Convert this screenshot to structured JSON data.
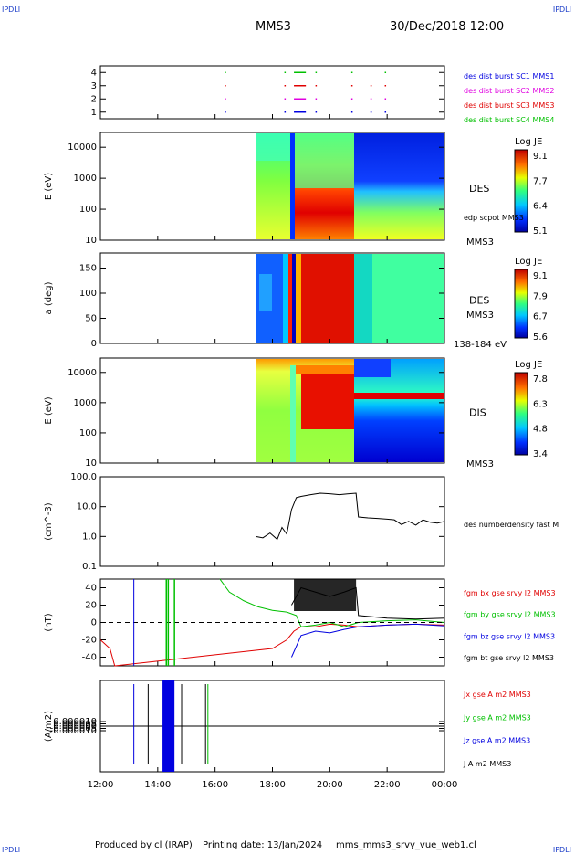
{
  "header": {
    "corner_label": "IPDLI",
    "spacecraft": "MMS3",
    "datetime": "30/Dec/2018 12:00"
  },
  "footer": {
    "produced": "Produced by cl (IRAP)",
    "printing": "Printing date: 13/Jan/2024",
    "file": "mms_mms3_srvy_vue_web1.cl"
  },
  "time_axis": {
    "ticks": [
      "12:00",
      "14:00",
      "16:00",
      "18:00",
      "20:00",
      "22:00",
      "00:00"
    ]
  },
  "colors": {
    "red": "#e00000",
    "green": "#00c000",
    "blue": "#0000e0",
    "magenta": "#e000e0",
    "black": "#000000"
  },
  "chart_data": [
    {
      "type": "scatter",
      "panel": "burst",
      "ylim": [
        0.5,
        4.5
      ],
      "yticks": [
        "1",
        "2",
        "3",
        "4"
      ],
      "legend": [
        "des dist burst SC1 MMS1",
        "des dist burst SC2 MMS2",
        "des dist burst SC3 MMS3",
        "des dist burst SC4 MMS4"
      ],
      "series": [
        {
          "name": "des dist burst SC4 MMS4",
          "y": 4,
          "color": "#00c000",
          "x": [
            "16:20",
            "18:25",
            "18:45-19:10",
            "19:30",
            "20:45",
            "21:55"
          ]
        },
        {
          "name": "des dist burst SC3 MMS3",
          "y": 3,
          "color": "#e00000",
          "x": [
            "16:20",
            "18:25",
            "18:45-19:10",
            "19:30",
            "20:45",
            "21:25",
            "21:55"
          ]
        },
        {
          "name": "des dist burst SC2 MMS2",
          "y": 2,
          "color": "#e000e0",
          "x": [
            "16:20",
            "18:25",
            "18:45-19:10",
            "19:30",
            "20:45",
            "21:25",
            "21:55"
          ]
        },
        {
          "name": "des dist burst SC1 MMS1",
          "y": 1,
          "color": "#0000e0",
          "x": [
            "16:20",
            "18:25",
            "18:45-19:10",
            "19:30",
            "20:45",
            "21:25",
            "21:55"
          ]
        }
      ]
    },
    {
      "type": "heatmap",
      "panel": "des_energy",
      "ylabel": "E (eV)",
      "yscale": "log",
      "ylim": [
        10,
        30000
      ],
      "yticks": [
        "10",
        "100",
        "1000",
        "10000"
      ],
      "label": "DES",
      "label2": "edp scpot MMS3",
      "label3": "MMS3",
      "colorbar": {
        "title": "Log JE",
        "ticks": [
          "9.1",
          "7.7",
          "6.4",
          "5.1"
        ]
      },
      "data_start": "17:25"
    },
    {
      "type": "heatmap",
      "panel": "des_pitch",
      "ylabel": "a (deg)",
      "ylim": [
        0,
        180
      ],
      "yticks": [
        "0",
        "50",
        "100",
        "150"
      ],
      "label": "DES",
      "label2": "MMS3",
      "label3": "138-184 eV",
      "colorbar": {
        "title": "Log JE",
        "ticks": [
          "9.1",
          "7.9",
          "6.7",
          "5.6"
        ]
      },
      "data_start": "17:25"
    },
    {
      "type": "heatmap",
      "panel": "dis_energy",
      "ylabel": "E (eV)",
      "yscale": "log",
      "ylim": [
        10,
        30000
      ],
      "yticks": [
        "10",
        "100",
        "1000",
        "10000"
      ],
      "label": "DIS",
      "label2": "MMS3",
      "colorbar": {
        "title": "Log JE",
        "ticks": [
          "7.8",
          "6.3",
          "4.8",
          "3.4"
        ]
      },
      "data_start": "17:25"
    },
    {
      "type": "line",
      "panel": "density",
      "ylabel": "(cm^-3)",
      "yscale": "log",
      "ylim": [
        0.1,
        100
      ],
      "yticks": [
        "0.1",
        "1.0",
        "10.0",
        "100.0"
      ],
      "series": [
        {
          "name": "des numberdensity fast M",
          "color": "#000000",
          "x": [
            "17:25",
            "17:40",
            "17:55",
            "18:10",
            "18:20",
            "18:30",
            "18:40",
            "18:50",
            "19:00",
            "19:20",
            "19:40",
            "20:00",
            "20:20",
            "20:40",
            "20:55",
            "21:00",
            "21:20",
            "21:40",
            "22:00",
            "22:15",
            "22:30",
            "22:45",
            "23:00",
            "23:15",
            "23:30",
            "23:45",
            "00:00"
          ],
          "y": [
            1.0,
            0.9,
            1.3,
            0.8,
            2.0,
            1.2,
            8.0,
            20.0,
            22.0,
            25.0,
            28.0,
            27.0,
            25.0,
            27.0,
            28.0,
            4.5,
            4.2,
            4.0,
            3.8,
            3.6,
            2.5,
            3.2,
            2.4,
            3.6,
            3.0,
            2.8,
            3.2
          ]
        }
      ]
    },
    {
      "type": "line",
      "panel": "fgm",
      "ylabel": "(nT)",
      "ylim": [
        -50,
        50
      ],
      "yticks": [
        "-40",
        "-20",
        "0",
        "20",
        "40"
      ],
      "series": [
        {
          "name": "fgm bx gse srvy l2 MMS3",
          "color": "#e00000",
          "x": [
            "12:00",
            "12:20",
            "12:30",
            "18:00",
            "18:30",
            "18:45",
            "19:00",
            "19:30",
            "20:00",
            "20:30",
            "21:00",
            "22:00",
            "23:00",
            "00:00"
          ],
          "y": [
            -20,
            -30,
            -50,
            -30,
            -20,
            -10,
            -5,
            -5,
            -2,
            -3,
            -5,
            -3,
            -2,
            -3
          ]
        },
        {
          "name": "fgm by gse srvy l2 MMS3",
          "color": "#00c000",
          "x": [
            "16:10",
            "16:30",
            "17:00",
            "17:30",
            "18:00",
            "18:30",
            "18:50",
            "19:00",
            "19:30",
            "20:00",
            "20:30",
            "21:00",
            "22:00",
            "23:00",
            "00:00"
          ],
          "y": [
            50,
            35,
            25,
            18,
            14,
            12,
            8,
            -5,
            -3,
            0,
            -5,
            0,
            2,
            3,
            0
          ]
        },
        {
          "name": "fgm bz gse srvy l2 MMS3",
          "color": "#0000e0",
          "x": [
            "18:40",
            "19:00",
            "19:30",
            "20:00",
            "20:30",
            "21:00",
            "22:00",
            "23:00",
            "00:00"
          ],
          "y": [
            -40,
            -15,
            -10,
            -12,
            -8,
            -5,
            -3,
            -2,
            -4
          ]
        },
        {
          "name": "fgm bt gse srvy l2 MMS3",
          "color": "#000000",
          "x": [
            "18:40",
            "19:00",
            "19:30",
            "20:00",
            "20:30",
            "20:55",
            "21:00",
            "22:00",
            "23:00",
            "00:00"
          ],
          "y": [
            20,
            40,
            35,
            30,
            35,
            40,
            8,
            5,
            4,
            5
          ]
        }
      ]
    },
    {
      "type": "line",
      "panel": "current",
      "ylabel": "(A/m2)",
      "ylim": [
        -0.0001,
        0.0001
      ],
      "yticks": [
        "-0.000010",
        "-0.000005",
        "0.000000",
        "0.000005",
        "0.000010"
      ],
      "series": [
        {
          "name": "Jx gse A m2 MMS3",
          "color": "#e00000"
        },
        {
          "name": "Jy gse A m2 MMS3",
          "color": "#00c000"
        },
        {
          "name": "Jz gse A m2 MMS3",
          "color": "#0000e0"
        },
        {
          "name": "J A m2 MMS3",
          "color": "#000000"
        }
      ]
    }
  ]
}
